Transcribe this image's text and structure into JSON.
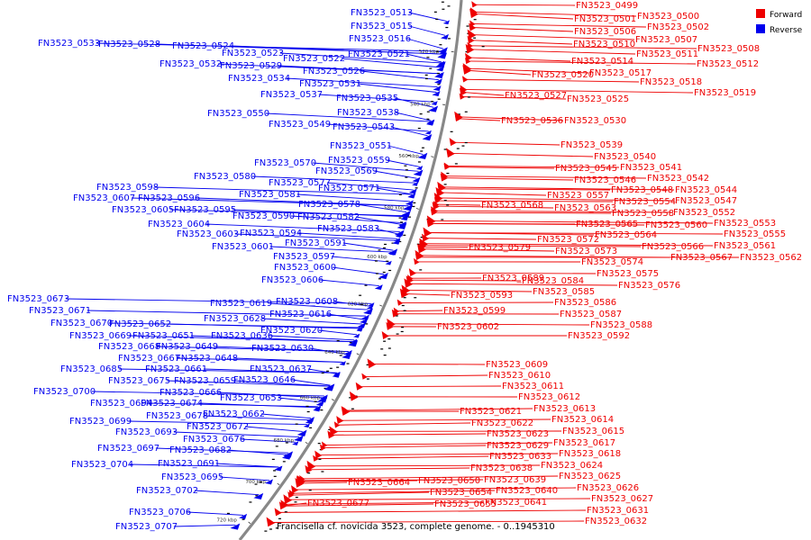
{
  "caption": "Francisella cf. novicida 3523, complete genome. - 0..1945310",
  "legend": [
    {
      "label": "Forward",
      "color": "#ee0000"
    },
    {
      "label": "Reverse",
      "color": "#0000ee"
    }
  ],
  "ticks": [
    "520 kbp",
    "540 kbp",
    "560 kbp",
    "580 kbp",
    "600 kbp",
    "620 kbp",
    "640 kbp",
    "660 kbp",
    "680 kbp",
    "700 kbp",
    "720 kbp"
  ],
  "forward_labels": [
    "FN3523_0499",
    "FN3523_0500",
    "FN3523_0501",
    "FN3523_0502",
    "FN3523_0506",
    "FN3523_0507",
    "FN3523_0508",
    "FN3523_0510",
    "FN3523_0511",
    "FN3523_0512",
    "FN3523_0514",
    "FN3523_0517",
    "FN3523_0518",
    "FN3523_0519",
    "FN3523_0520",
    "FN3523_0525",
    "FN3523_0527",
    "FN3523_0530",
    "FN3523_0536",
    "FN3523_0539",
    "FN3523_0540",
    "FN3523_0541",
    "FN3523_0542",
    "FN3523_0544",
    "FN3523_0545",
    "FN3523_0546",
    "FN3523_0547",
    "FN3523_0548",
    "FN3523_0552",
    "FN3523_0553",
    "FN3523_0554",
    "FN3523_0555",
    "FN3523_0557",
    "FN3523_0558",
    "FN3523_0560",
    "FN3523_0561",
    "FN3523_0562",
    "FN3523_0563",
    "FN3523_0564",
    "FN3523_0565",
    "FN3523_0566",
    "FN3523_0567",
    "FN3523_0568",
    "FN3523_0572",
    "FN3523_0573",
    "FN3523_0574",
    "FN3523_0575",
    "FN3523_0576",
    "FN3523_0579",
    "FN3523_0584",
    "FN3523_0585",
    "FN3523_0586",
    "FN3523_0587",
    "FN3523_0588",
    "FN3523_0589",
    "FN3523_0592",
    "FN3523_0593",
    "FN3523_0599",
    "FN3523_0602",
    "FN3523_0609",
    "FN3523_0610",
    "FN3523_0611",
    "FN3523_0612",
    "FN3523_0613",
    "FN3523_0614",
    "FN3523_0615",
    "FN3523_0617",
    "FN3523_0618",
    "FN3523_0621",
    "FN3523_0622",
    "FN3523_0623",
    "FN3523_0624",
    "FN3523_0625",
    "FN3523_0626",
    "FN3523_0627",
    "FN3523_0629",
    "FN3523_0631",
    "FN3523_0632",
    "FN3523_0633",
    "FN3523_0638",
    "FN3523_0639",
    "FN3523_0640",
    "FN3523_0641",
    "FN3523_0650",
    "FN3523_0654",
    "FN3523_0655",
    "FN3523_0664",
    "FN3523_0677"
  ],
  "reverse_labels": [
    "FN3523_0513",
    "FN3523_0515",
    "FN3523_0516",
    "FN3523_0521",
    "FN3523_0522",
    "FN3523_0523",
    "FN3523_0524",
    "FN3523_0526",
    "FN3523_0528",
    "FN3523_0529",
    "FN3523_0531",
    "FN3523_0532",
    "FN3523_0533",
    "FN3523_0534",
    "FN3523_0535",
    "FN3523_0537",
    "FN3523_0538",
    "FN3523_0543",
    "FN3523_0549",
    "FN3523_0550",
    "FN3523_0551",
    "FN3523_0559",
    "FN3523_0569",
    "FN3523_0570",
    "FN3523_0571",
    "FN3523_0577",
    "FN3523_0578",
    "FN3523_0580",
    "FN3523_0581",
    "FN3523_0582",
    "FN3523_0583",
    "FN3523_0590",
    "FN3523_0591",
    "FN3523_0594",
    "FN3523_0595",
    "FN3523_0596",
    "FN3523_0597",
    "FN3523_0598",
    "FN3523_0600",
    "FN3523_0601",
    "FN3523_0603",
    "FN3523_0604",
    "FN3523_0605",
    "FN3523_0606",
    "FN3523_0607",
    "FN3523_0608",
    "FN3523_0616",
    "FN3523_0619",
    "FN3523_0620",
    "FN3523_0628",
    "FN3523_0630",
    "FN3523_0636",
    "FN3523_0637",
    "FN3523_0646",
    "FN3523_0648",
    "FN3523_0649",
    "FN3523_0651",
    "FN3523_0652",
    "FN3523_0653",
    "FN3523_0659",
    "FN3523_0661",
    "FN3523_0662",
    "FN3523_0666",
    "FN3523_0667",
    "FN3523_0668",
    "FN3523_0669",
    "FN3523_0670",
    "FN3523_0671",
    "FN3523_0672",
    "FN3523_0673",
    "FN3523_0674",
    "FN3523_0675",
    "FN3523_0676",
    "FN3523_0678",
    "FN3523_0682",
    "FN3523_0685",
    "FN3523_0691",
    "FN3523_0693",
    "FN3523_0694",
    "FN3523_0695",
    "FN3523_0697",
    "FN3523_0699",
    "FN3523_0700",
    "FN3523_0702",
    "FN3523_0704",
    "FN3523_0706",
    "FN3523_0707"
  ]
}
